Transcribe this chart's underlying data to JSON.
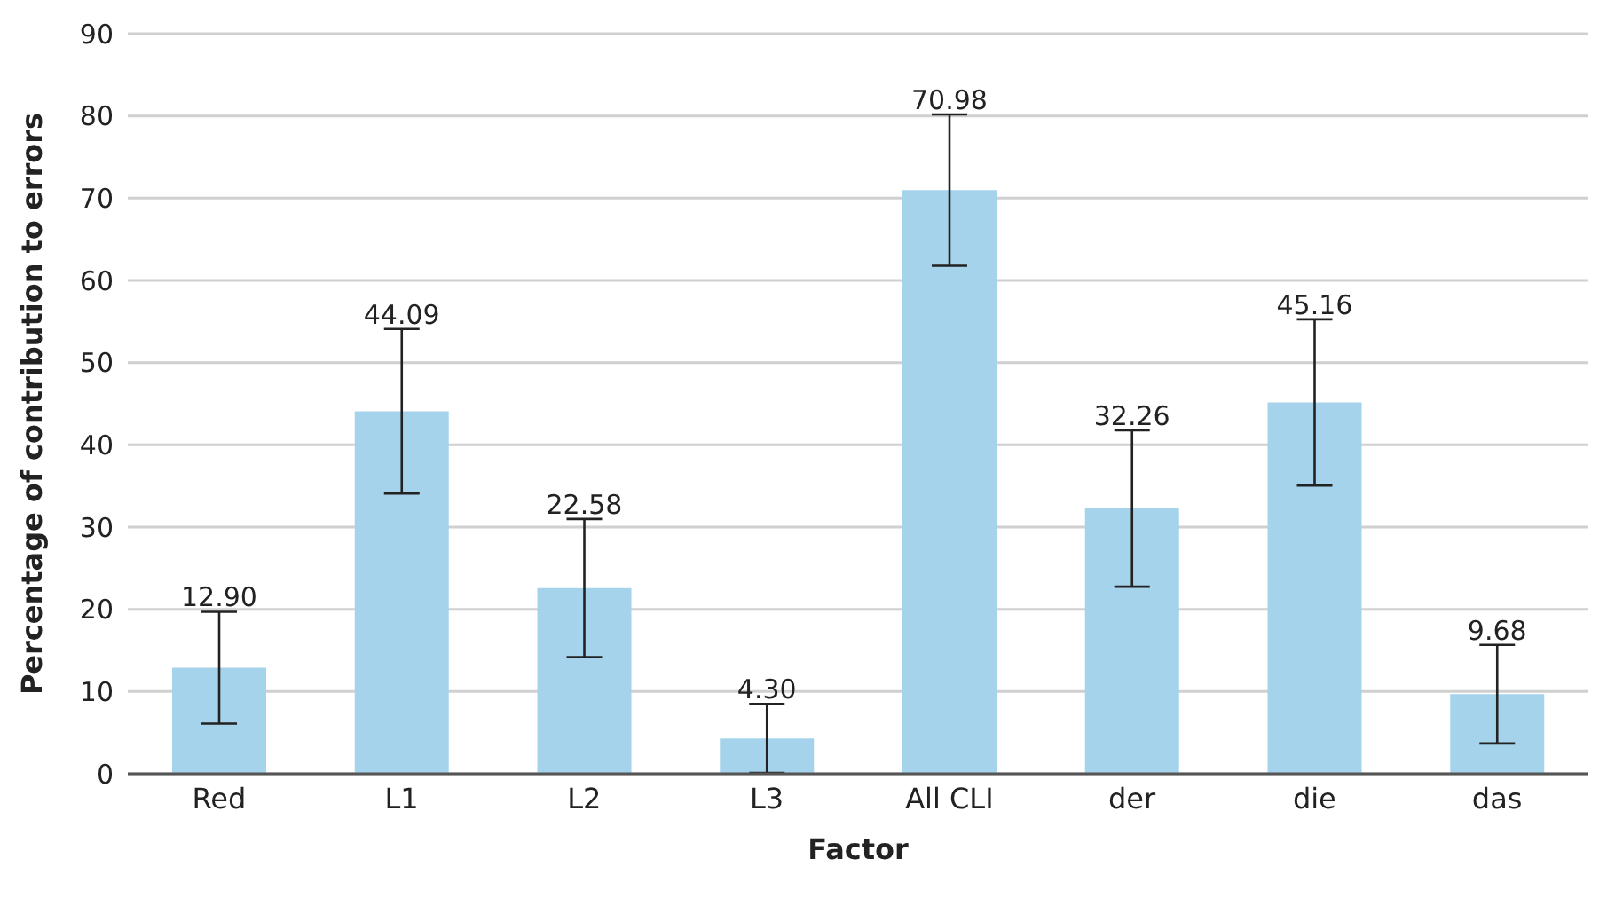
{
  "chart_data": {
    "type": "bar",
    "xlabel": "Factor",
    "ylabel": "Percentage of contribution to errors",
    "categories": [
      "Red",
      "L1",
      "L2",
      "L3",
      "All CLI",
      "der",
      "die",
      "das"
    ],
    "values": [
      12.9,
      44.09,
      22.58,
      4.3,
      70.98,
      32.26,
      45.16,
      9.68
    ],
    "value_labels": [
      "12.90",
      "44.09",
      "22.58",
      "4.30",
      "70.98",
      "32.26",
      "45.16",
      "9.68"
    ],
    "errors": [
      6.8,
      10,
      8.4,
      4.2,
      9.2,
      9.5,
      10.1,
      6.0
    ],
    "color": "#a6d3ec",
    "ylim": [
      0,
      90
    ],
    "yticks": [
      0,
      10,
      20,
      30,
      40,
      50,
      60,
      70,
      80,
      90
    ],
    "grid": "y",
    "legend": false
  }
}
